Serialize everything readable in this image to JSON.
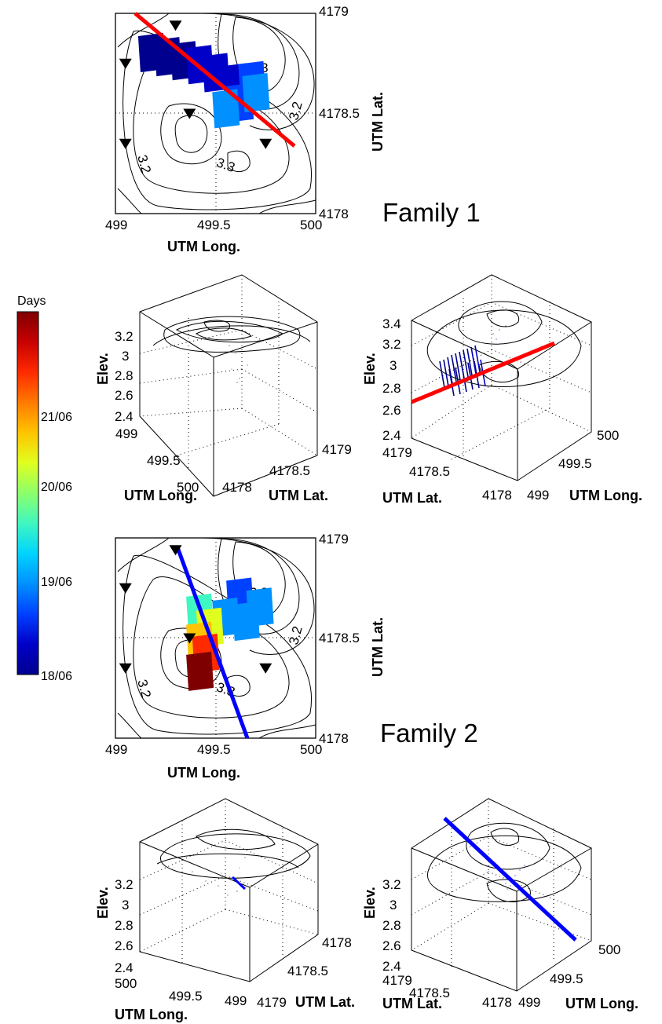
{
  "family_labels": [
    "Family 1",
    "Family 2"
  ],
  "colorbar": {
    "title": "Days",
    "ticks": [
      "21/06",
      "20/06",
      "19/06",
      "18/06"
    ],
    "colormap": [
      "#7f0000",
      "#c80000",
      "#ff2a00",
      "#ff7a00",
      "#ffc400",
      "#e0ff1f",
      "#8cff6b",
      "#3ff7c0",
      "#00d4ff",
      "#0090ff",
      "#0040ff",
      "#0000c8",
      "#00008f"
    ]
  },
  "labels": {
    "utm_long": "UTM Long.",
    "utm_lat": "UTM Lat.",
    "elev": "Elev."
  },
  "chart_data": [
    {
      "type": "scatter",
      "panel": "family1-map",
      "xlabel": "UTM Long.",
      "ylabel": "UTM Lat.",
      "xlim": [
        499,
        500
      ],
      "ylim": [
        4178,
        4179
      ],
      "xticks": [
        "499",
        "499.5",
        "500"
      ],
      "yticks": [
        "4178",
        "4178.5",
        "4179"
      ],
      "contour_labels": [
        "3.3",
        "3.2",
        "3.2",
        "3.3"
      ],
      "stations": [
        [
          499.3,
          4178.94
        ],
        [
          499.05,
          4178.75
        ],
        [
          499.37,
          4178.5
        ],
        [
          499.05,
          4178.35
        ],
        [
          499.75,
          4178.35
        ]
      ],
      "fault_line": {
        "color": "#ff0000",
        "points": [
          [
            499.1,
            4179.0
          ],
          [
            499.85,
            4178.35
          ]
        ]
      },
      "sources": [
        {
          "x": 499.18,
          "y": 4178.8,
          "day": 18.0
        },
        {
          "x": 499.26,
          "y": 4178.78,
          "day": 18.1
        },
        {
          "x": 499.34,
          "y": 4178.76,
          "day": 18.2
        },
        {
          "x": 499.42,
          "y": 4178.74,
          "day": 18.3
        },
        {
          "x": 499.5,
          "y": 4178.7,
          "day": 18.4
        },
        {
          "x": 499.6,
          "y": 4178.65,
          "day": 18.5
        },
        {
          "x": 499.68,
          "y": 4178.66,
          "day": 18.6
        },
        {
          "x": 499.62,
          "y": 4178.55,
          "day": 19.0
        },
        {
          "x": 499.55,
          "y": 4178.52,
          "day": 19.1
        },
        {
          "x": 499.7,
          "y": 4178.6,
          "day": 19.2
        }
      ]
    },
    {
      "type": "scatter",
      "panel": "family1-3d-a",
      "zlabel": "Elev.",
      "xlabel": "UTM Long.",
      "ylabel": "UTM Lat.",
      "zticks": [
        "3.2",
        "3",
        "2.8",
        "2.6",
        "2.4"
      ],
      "xticks": [
        "499",
        "499.5",
        "500"
      ],
      "yticks": [
        "4178",
        "4178.5",
        "4179"
      ]
    },
    {
      "type": "scatter",
      "panel": "family1-3d-b",
      "zlabel": "Elev.",
      "xlabel": "UTM Long.",
      "ylabel": "UTM Lat.",
      "zticks": [
        "3.4",
        "3.2",
        "3",
        "2.8",
        "2.6",
        "2.4"
      ],
      "yticks": [
        "4179",
        "4178.5",
        "4178"
      ],
      "xticks": [
        "499",
        "499.5",
        "500"
      ],
      "fault_line": {
        "color": "#ff0000"
      }
    },
    {
      "type": "scatter",
      "panel": "family2-map",
      "xlabel": "UTM Long.",
      "ylabel": "UTM Lat.",
      "xlim": [
        499,
        500
      ],
      "ylim": [
        4178,
        4179
      ],
      "xticks": [
        "499",
        "499.5",
        "500"
      ],
      "yticks": [
        "4178",
        "4178.5",
        "4179"
      ],
      "contour_labels": [
        "3.3",
        "3.2",
        "3.2",
        "3.3"
      ],
      "stations": [
        [
          499.3,
          4178.94
        ],
        [
          499.05,
          4178.75
        ],
        [
          499.37,
          4178.5
        ],
        [
          499.05,
          4178.35
        ],
        [
          499.75,
          4178.35
        ]
      ],
      "fault_line": {
        "color": "#0000ff",
        "points": [
          [
            499.32,
            4179.0
          ],
          [
            499.65,
            4178.0
          ]
        ]
      },
      "sources": [
        {
          "x": 499.62,
          "y": 4178.7,
          "day": 19.0
        },
        {
          "x": 499.72,
          "y": 4178.65,
          "day": 19.1
        },
        {
          "x": 499.55,
          "y": 4178.6,
          "day": 19.2
        },
        {
          "x": 499.65,
          "y": 4178.58,
          "day": 19.3
        },
        {
          "x": 499.42,
          "y": 4178.62,
          "day": 20.2
        },
        {
          "x": 499.47,
          "y": 4178.55,
          "day": 20.9
        },
        {
          "x": 499.42,
          "y": 4178.48,
          "day": 21.3
        },
        {
          "x": 499.45,
          "y": 4178.42,
          "day": 22.2
        },
        {
          "x": 499.42,
          "y": 4178.33,
          "day": 22.6
        }
      ]
    },
    {
      "type": "scatter",
      "panel": "family2-3d-a",
      "zlabel": "Elev.",
      "xlabel": "UTM Long.",
      "ylabel": "UTM Lat.",
      "zticks": [
        "3.2",
        "3",
        "2.8",
        "2.6",
        "2.4"
      ],
      "xticks": [
        "500",
        "499.5",
        "499"
      ],
      "yticks": [
        "4179",
        "4178.5",
        "4178"
      ]
    },
    {
      "type": "scatter",
      "panel": "family2-3d-b",
      "zlabel": "Elev.",
      "xlabel": "UTM Long.",
      "ylabel": "UTM Lat.",
      "zticks": [
        "3.2",
        "3",
        "2.8",
        "2.6",
        "2.4"
      ],
      "yticks": [
        "4179",
        "4178.5",
        "4178"
      ],
      "xticks": [
        "499",
        "499.5",
        "500"
      ],
      "fault_line": {
        "color": "#0000ff"
      }
    }
  ]
}
